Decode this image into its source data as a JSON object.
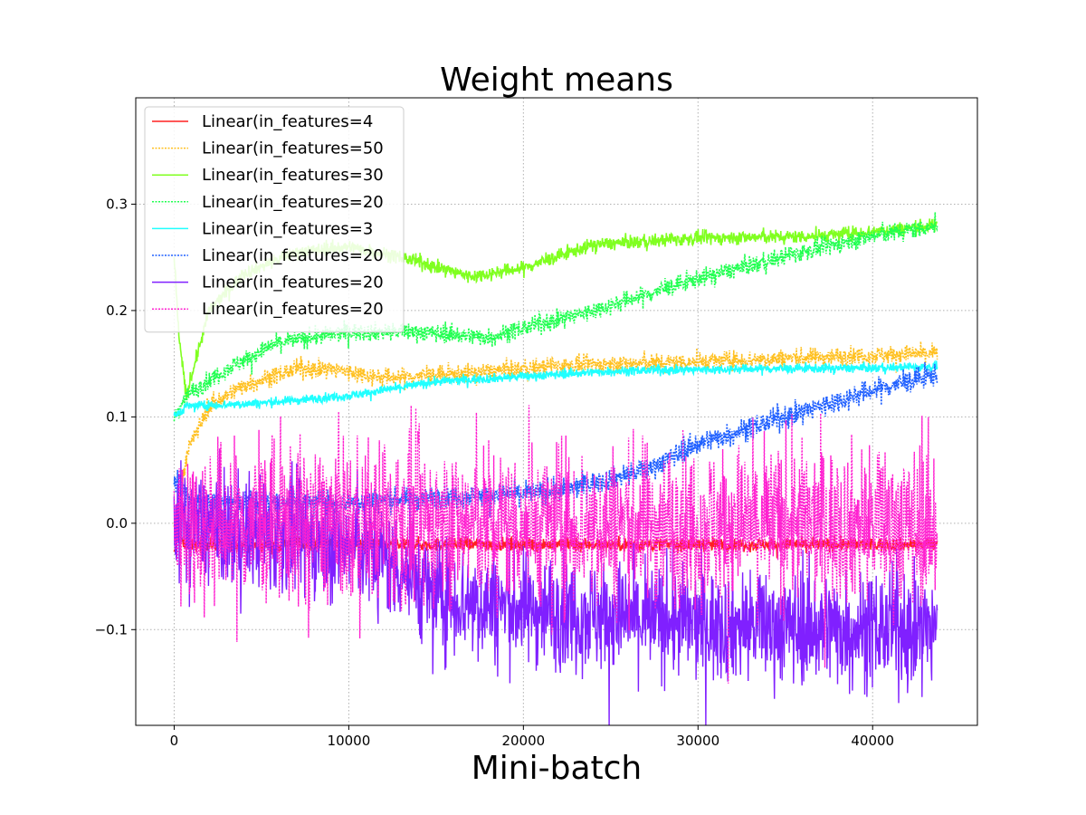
{
  "chart_data": {
    "type": "line",
    "title": "Weight means",
    "xlabel": "Mini-batch",
    "ylabel": "",
    "xlim": [
      -2200,
      46000
    ],
    "ylim": [
      -0.19,
      0.4
    ],
    "xticks": [
      0,
      10000,
      20000,
      30000,
      40000
    ],
    "xtick_labels": [
      "0",
      "10000",
      "20000",
      "30000",
      "40000"
    ],
    "yticks": [
      -0.1,
      0.0,
      0.1,
      0.2,
      0.3
    ],
    "ytick_labels": [
      "−0.1",
      "0.0",
      "0.1",
      "0.2",
      "0.3"
    ],
    "grid": true,
    "legend_position": "top-left",
    "x_range": [
      0,
      43700
    ],
    "series": [
      {
        "name": "Linear(in_features=4",
        "color": "#ff2020",
        "style": "solid",
        "noise": 0.006,
        "points": [
          [
            0,
            -0.03
          ],
          [
            200,
            -0.01
          ],
          [
            600,
            -0.02
          ],
          [
            43700,
            -0.02
          ]
        ]
      },
      {
        "name": "Linear(in_features=50",
        "color": "#ffc020",
        "style": "dotted",
        "noise": 0.008,
        "points": [
          [
            0,
            0.0
          ],
          [
            800,
            0.07
          ],
          [
            2000,
            0.11
          ],
          [
            4000,
            0.13
          ],
          [
            7000,
            0.145
          ],
          [
            9000,
            0.145
          ],
          [
            12000,
            0.137
          ],
          [
            16000,
            0.14
          ],
          [
            22000,
            0.148
          ],
          [
            30000,
            0.152
          ],
          [
            38000,
            0.157
          ],
          [
            43700,
            0.16
          ]
        ]
      },
      {
        "name": "Linear(in_features=30",
        "color": "#80ff20",
        "style": "solid",
        "noise": 0.006,
        "points": [
          [
            0,
            0.25
          ],
          [
            300,
            0.17
          ],
          [
            700,
            0.12
          ],
          [
            2000,
            0.2
          ],
          [
            4000,
            0.235
          ],
          [
            7000,
            0.255
          ],
          [
            10000,
            0.26
          ],
          [
            13000,
            0.25
          ],
          [
            17000,
            0.232
          ],
          [
            20000,
            0.24
          ],
          [
            24000,
            0.262
          ],
          [
            30000,
            0.268
          ],
          [
            37000,
            0.27
          ],
          [
            43700,
            0.28
          ]
        ]
      },
      {
        "name": "Linear(in_features=20",
        "color": "#20ff50",
        "style": "dotted",
        "noise": 0.008,
        "points": [
          [
            0,
            0.1
          ],
          [
            700,
            0.12
          ],
          [
            3000,
            0.145
          ],
          [
            6000,
            0.17
          ],
          [
            10000,
            0.18
          ],
          [
            14000,
            0.18
          ],
          [
            18000,
            0.175
          ],
          [
            24000,
            0.2
          ],
          [
            30000,
            0.23
          ],
          [
            36000,
            0.255
          ],
          [
            40000,
            0.27
          ],
          [
            43700,
            0.28
          ]
        ]
      },
      {
        "name": "Linear(in_features=3",
        "color": "#20ffff",
        "style": "solid",
        "noise": 0.004,
        "points": [
          [
            0,
            0.1
          ],
          [
            700,
            0.11
          ],
          [
            5000,
            0.113
          ],
          [
            10000,
            0.12
          ],
          [
            15000,
            0.133
          ],
          [
            20000,
            0.138
          ],
          [
            25000,
            0.143
          ],
          [
            32000,
            0.145
          ],
          [
            40000,
            0.146
          ],
          [
            43700,
            0.147
          ]
        ]
      },
      {
        "name": "Linear(in_features=20",
        "color": "#2060ff",
        "style": "dotted",
        "noise": 0.01,
        "points": [
          [
            0,
            0.04
          ],
          [
            1000,
            0.02
          ],
          [
            10000,
            0.02
          ],
          [
            22000,
            0.03
          ],
          [
            27000,
            0.05
          ],
          [
            30000,
            0.075
          ],
          [
            35000,
            0.1
          ],
          [
            40000,
            0.125
          ],
          [
            43700,
            0.14
          ]
        ]
      },
      {
        "name": "Linear(in_features=20",
        "color": "#8020ff",
        "style": "solid",
        "noise": 0.05,
        "points": [
          [
            0,
            0.0
          ],
          [
            5000,
            -0.01
          ],
          [
            10000,
            -0.02
          ],
          [
            13000,
            -0.04
          ],
          [
            15000,
            -0.07
          ],
          [
            20000,
            -0.08
          ],
          [
            30000,
            -0.095
          ],
          [
            43700,
            -0.1
          ]
        ]
      },
      {
        "name": "Linear(in_features=20",
        "color": "#ff20d0",
        "style": "dotted",
        "noise": 0.07,
        "points": [
          [
            0,
            0.0
          ],
          [
            43700,
            0.0
          ]
        ]
      }
    ]
  }
}
